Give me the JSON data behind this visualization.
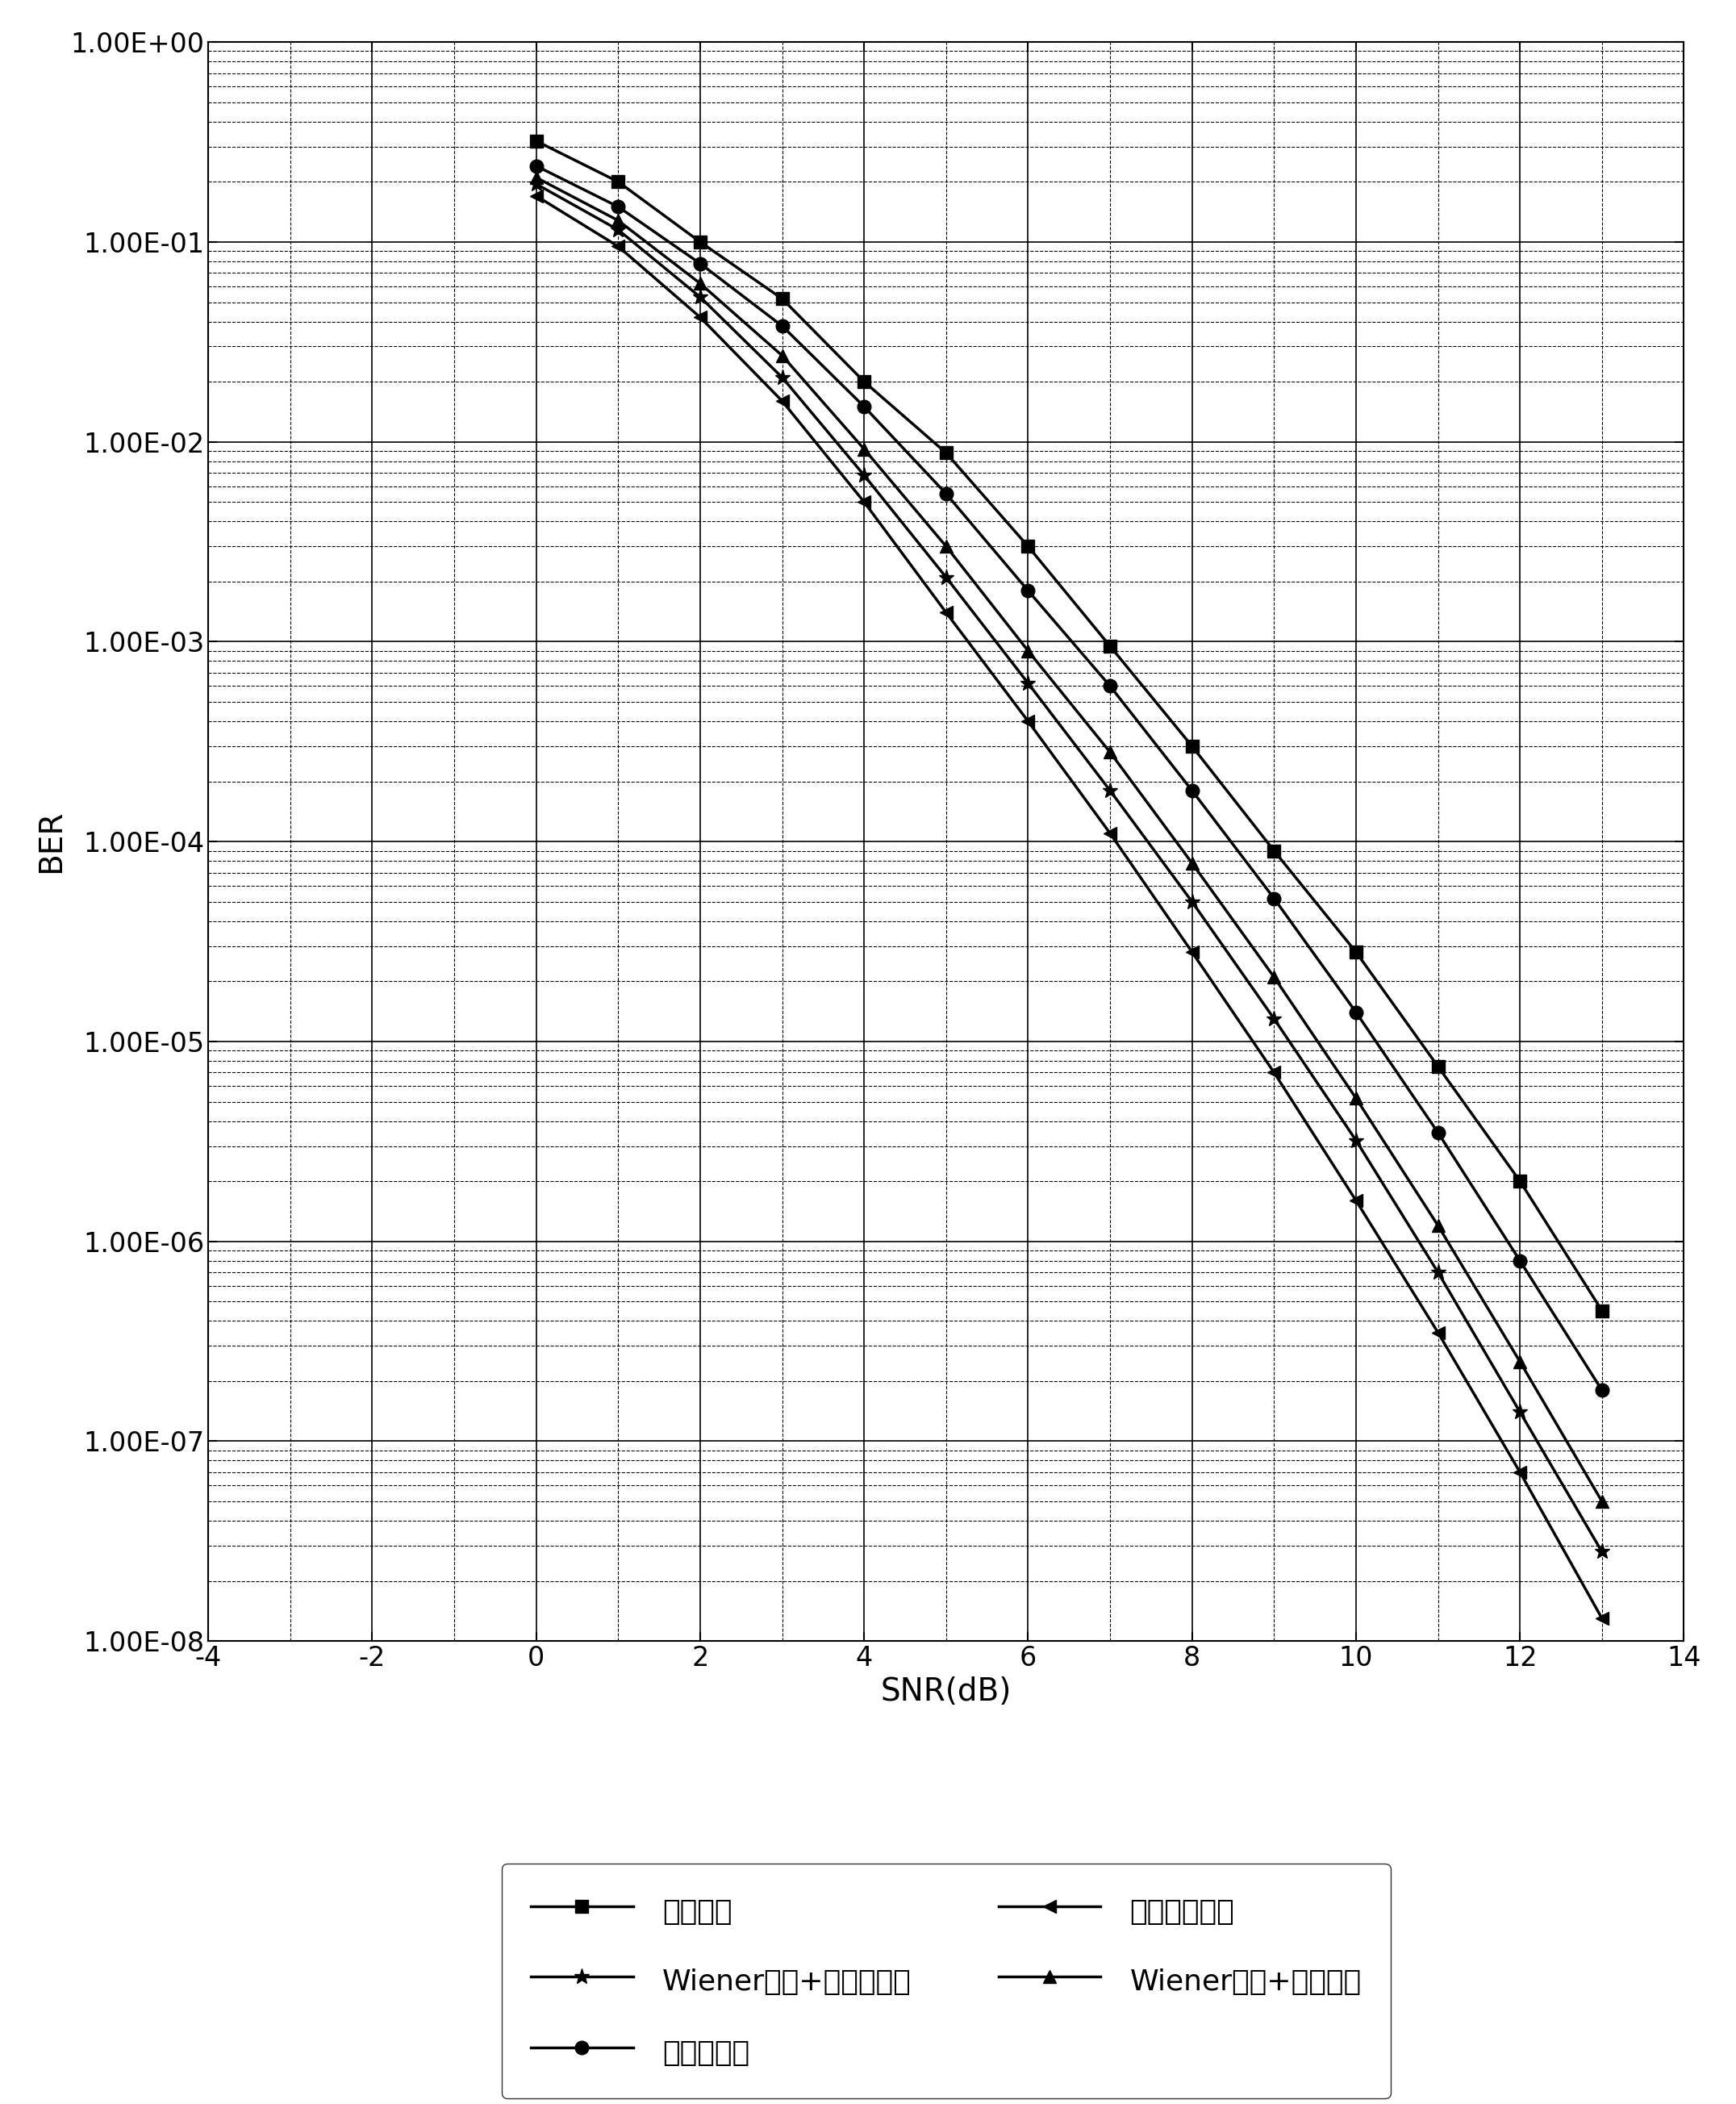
{
  "xlabel": "SNR(dB)",
  "ylabel": "BER",
  "xlim": [
    -4,
    14
  ],
  "ylim_log": [
    -8,
    0
  ],
  "xticks": [
    -4,
    -2,
    0,
    2,
    4,
    6,
    8,
    10,
    12,
    14
  ],
  "ytick_labels": [
    "1.00E+00",
    "1.00E-01",
    "1.00E-02",
    "1.00E-03",
    "1.00E-04",
    "1.00E-05",
    "1.00E-06",
    "1.00E-07",
    "1.00E-08"
  ],
  "series": [
    {
      "label": "线性插値",
      "marker": "s",
      "snr": [
        0,
        1,
        2,
        3,
        4,
        5,
        6,
        7,
        8,
        9,
        10,
        11,
        12,
        13
      ],
      "ber": [
        0.32,
        0.2,
        0.1,
        0.052,
        0.02,
        0.0088,
        0.003,
        0.00095,
        0.0003,
        9e-05,
        2.8e-05,
        7.5e-06,
        2e-06,
        4.5e-07
      ]
    },
    {
      "label": "变换域估计",
      "marker": "o",
      "snr": [
        0,
        1,
        2,
        3,
        4,
        5,
        6,
        7,
        8,
        9,
        10,
        11,
        12,
        13
      ],
      "ber": [
        0.24,
        0.15,
        0.078,
        0.038,
        0.015,
        0.0055,
        0.0018,
        0.0006,
        0.00018,
        5.2e-05,
        1.4e-05,
        3.5e-06,
        8e-07,
        1.8e-07
      ]
    },
    {
      "label": "Wiener滤波+线性插値",
      "marker": "^",
      "snr": [
        0,
        1,
        2,
        3,
        4,
        5,
        6,
        7,
        8,
        9,
        10,
        11,
        12,
        13
      ],
      "ber": [
        0.21,
        0.128,
        0.062,
        0.027,
        0.0092,
        0.003,
        0.0009,
        0.00028,
        7.8e-05,
        2.1e-05,
        5.2e-06,
        1.2e-06,
        2.5e-07,
        5e-08
      ]
    },
    {
      "label": "Wiener滤波+变换域估计",
      "marker": "*",
      "snr": [
        0,
        1,
        2,
        3,
        4,
        5,
        6,
        7,
        8,
        9,
        10,
        11,
        12,
        13
      ],
      "ber": [
        0.195,
        0.115,
        0.053,
        0.021,
        0.0068,
        0.0021,
        0.00062,
        0.00018,
        5e-05,
        1.3e-05,
        3.2e-06,
        7e-07,
        1.4e-07,
        2.8e-08
      ]
    },
    {
      "label": "理想信道估计",
      "marker": "<",
      "snr": [
        0,
        1,
        2,
        3,
        4,
        5,
        6,
        7,
        8,
        9,
        10,
        11,
        12,
        13
      ],
      "ber": [
        0.17,
        0.095,
        0.042,
        0.016,
        0.005,
        0.0014,
        0.0004,
        0.00011,
        2.8e-05,
        7e-06,
        1.6e-06,
        3.5e-07,
        7e-08,
        1.3e-08
      ]
    }
  ],
  "font_size_axis_label": 28,
  "font_size_tick": 24,
  "font_size_legend": 26,
  "marker_size": 12,
  "line_width": 2.5,
  "major_grid_lw": 1.2,
  "minor_grid_lw": 0.8
}
